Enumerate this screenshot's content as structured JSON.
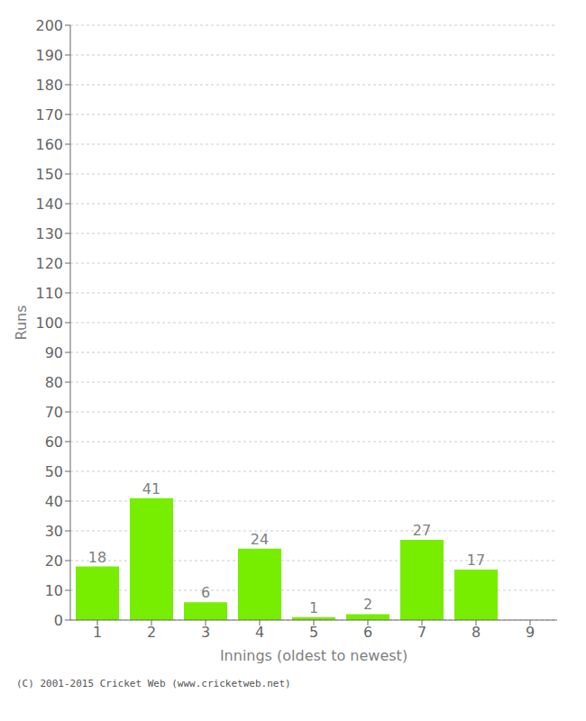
{
  "chart_data": {
    "type": "bar",
    "categories": [
      "1",
      "2",
      "3",
      "4",
      "5",
      "6",
      "7",
      "8",
      "9"
    ],
    "values": [
      18,
      41,
      6,
      24,
      1,
      2,
      27,
      17,
      0
    ],
    "color": "#77ee00",
    "xlabel": "Innings (oldest to newest)",
    "ylabel": "Runs",
    "ylim": [
      0,
      200
    ],
    "yticks": [
      0,
      10,
      20,
      30,
      40,
      50,
      60,
      70,
      80,
      90,
      100,
      110,
      120,
      130,
      140,
      150,
      160,
      170,
      180,
      190,
      200
    ],
    "grid": true,
    "data_labels": true,
    "annotations": [
      "(C) 2001-2015 Cricket Web (www.cricketweb.net)"
    ]
  }
}
